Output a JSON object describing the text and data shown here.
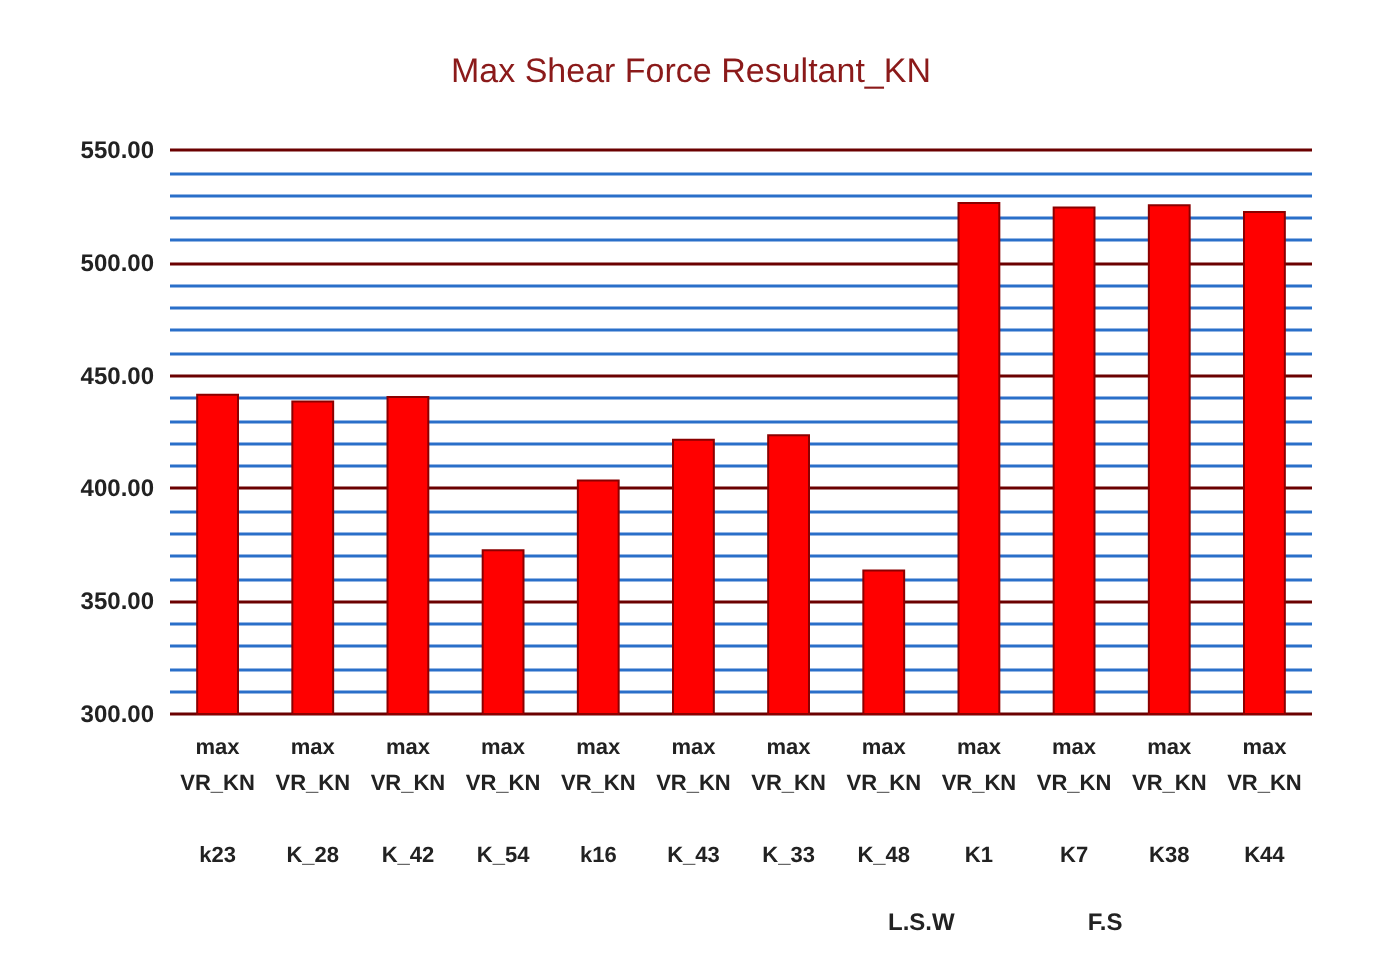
{
  "chart_data": {
    "type": "bar",
    "title": "Max Shear Force Resultant_KN",
    "categories": [
      "max VR_KN k23",
      "max VR_KN K_28",
      "max VR_KN K_42",
      "max VR_KN K_54",
      "max VR_KN k16",
      "max VR_KN K_43",
      "max VR_KN K_33",
      "max VR_KN K_48",
      "max VR_KN K1",
      "max VR_KN K7",
      "max VR_KN K38",
      "max VR_KN K44"
    ],
    "values": [
      442,
      439,
      441,
      373,
      404,
      422,
      424,
      364,
      527,
      525,
      526,
      523
    ],
    "color": "#ff0000",
    "ylim": [
      300,
      550
    ],
    "yticks": [
      {
        "value": 300,
        "label": "300.00"
      },
      {
        "value": 310,
        "label": null
      },
      {
        "value": 320,
        "label": null
      },
      {
        "value": 330,
        "label": null
      },
      {
        "value": 340,
        "label": null
      },
      {
        "value": 350,
        "label": "350.00"
      },
      {
        "value": 360,
        "label": null
      },
      {
        "value": 370,
        "label": null
      },
      {
        "value": 380,
        "label": null
      },
      {
        "value": 390,
        "label": null
      },
      {
        "value": 400,
        "label": "400.00"
      },
      {
        "value": 410,
        "label": null
      },
      {
        "value": 420,
        "label": null
      },
      {
        "value": 430,
        "label": null
      },
      {
        "value": 440,
        "label": null
      },
      {
        "value": 450,
        "label": "450.00"
      },
      {
        "value": 460,
        "label": null
      },
      {
        "value": 470,
        "label": null
      },
      {
        "value": 480,
        "label": null
      },
      {
        "value": 490,
        "label": null
      },
      {
        "value": 500,
        "label": "500.00"
      },
      {
        "value": 510,
        "label": null
      },
      {
        "value": 520,
        "label": null
      },
      {
        "value": 530,
        "label": null
      },
      {
        "value": 540,
        "label": null
      },
      {
        "value": 550,
        "label": "550.00"
      }
    ],
    "grid": true,
    "annotations": [
      "L.S.W",
      "F.S"
    ]
  }
}
